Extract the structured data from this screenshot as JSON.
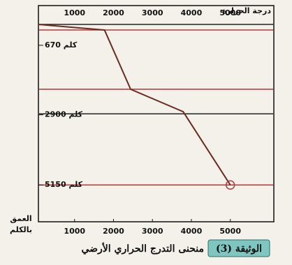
{
  "chart_data": {
    "type": "line",
    "x_label": "درجة الحرارة",
    "y_label": [
      "العمق",
      "بالكلم"
    ],
    "caption_tag": "الوثيقة (3)",
    "caption": "منحنى التدرج الحراري الأرضي",
    "x": [
      70,
      1770,
      2440,
      3790,
      5000
    ],
    "series": [
      {
        "color": "#6b2a1e",
        "values": [
          0,
          180,
          2080,
          2800,
          5150
        ]
      }
    ],
    "xlim": [
      0,
      6100
    ],
    "xticks": [
      1000,
      2000,
      3000,
      4000,
      5000
    ],
    "ylim": [
      6330,
      0
    ],
    "yticks": [
      {
        "value": 670,
        "label": "670 كلم"
      },
      {
        "value": 2900,
        "label": "2900 كلم"
      },
      {
        "value": 5150,
        "label": "5150 كلم"
      }
    ],
    "reference_lines": [
      {
        "depth": 0,
        "color": "#222222"
      },
      {
        "depth": 180,
        "color": "#b03a3a"
      },
      {
        "depth": 2080,
        "color": "#b03a3a"
      },
      {
        "depth": 2870,
        "color": "#222222"
      },
      {
        "depth": 5150,
        "color": "#b03a3a"
      }
    ]
  }
}
